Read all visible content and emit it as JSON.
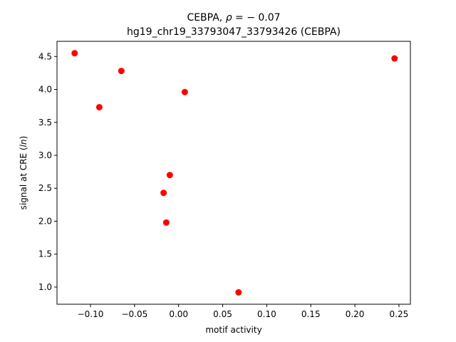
{
  "chart_data": {
    "type": "scatter",
    "title_line1_prefix": "CEBPA, ",
    "title_line1_symbol": "ρ",
    "title_line1_suffix": " = − 0.07",
    "title_line2": "hg19_chr19_33793047_33793426 (CEBPA)",
    "xlabel": "motif activity",
    "ylabel_prefix": "signal at CRE (",
    "ylabel_italic": "ln",
    "ylabel_suffix": ")",
    "xlim": [
      -0.138,
      0.263
    ],
    "ylim": [
      0.74,
      4.73
    ],
    "xticks": [
      -0.1,
      -0.05,
      0.0,
      0.05,
      0.1,
      0.15,
      0.2,
      0.25
    ],
    "xtick_labels": [
      "−0.10",
      "−0.05",
      "0.00",
      "0.05",
      "0.10",
      "0.15",
      "0.20",
      "0.25"
    ],
    "yticks": [
      1.0,
      1.5,
      2.0,
      2.5,
      3.0,
      3.5,
      4.0,
      4.5
    ],
    "ytick_labels": [
      "1.0",
      "1.5",
      "2.0",
      "2.5",
      "3.0",
      "3.5",
      "4.0",
      "4.5"
    ],
    "point_color": "#ff0000",
    "points": [
      {
        "x": -0.118,
        "y": 4.55
      },
      {
        "x": -0.065,
        "y": 4.28
      },
      {
        "x": -0.09,
        "y": 3.73
      },
      {
        "x": 0.007,
        "y": 3.96
      },
      {
        "x": 0.245,
        "y": 4.47
      },
      {
        "x": -0.01,
        "y": 2.7
      },
      {
        "x": -0.017,
        "y": 2.43
      },
      {
        "x": -0.014,
        "y": 1.98
      },
      {
        "x": 0.068,
        "y": 0.92
      }
    ]
  }
}
